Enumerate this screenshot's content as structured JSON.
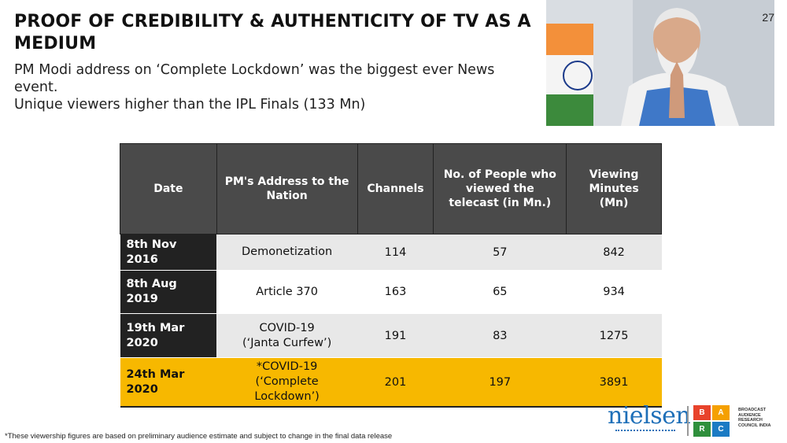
{
  "header": {
    "title": "PROOF OF CREDIBILITY & AUTHENTICITY OF TV AS A MEDIUM",
    "subtitle_line1": "PM Modi address on ‘Complete Lockdown’ was the biggest ever News event.",
    "subtitle_line2": "Unique viewers higher than the IPL Finals (133 Mn)"
  },
  "page_number": "27",
  "table": {
    "columns": [
      "Date",
      "PM's Address to the Nation",
      "Channels",
      "No. of People who viewed the telecast (in Mn.)",
      "Viewing Minutes (Mn)"
    ],
    "rows": [
      {
        "date": "8th Nov 2016",
        "address": "Demonetization",
        "address2": "",
        "channels": "114",
        "viewers": "57",
        "minutes": "842"
      },
      {
        "date": "8th Aug 2019",
        "address": "Article 370",
        "address2": "",
        "channels": "163",
        "viewers": "65",
        "minutes": "934"
      },
      {
        "date": "19th Mar 2020",
        "address": "COVID-19",
        "address2": "(‘Janta Curfew’)",
        "channels": "191",
        "viewers": "83",
        "minutes": "1275"
      },
      {
        "date": "24th Mar 2020",
        "address": "*COVID-19",
        "address2": "(‘Complete Lockdown’)",
        "channels": "201",
        "viewers": "197",
        "minutes": "3891"
      }
    ]
  },
  "footnote": "*These viewership figures are based on preliminary audience estimate and subject to change in the final data release",
  "logos": {
    "nielsen": "nielsen",
    "barc_letters": [
      "B",
      "A",
      "R",
      "C"
    ],
    "barc_colors": [
      "#e8432b",
      "#f5a000",
      "#2f8f3c",
      "#1b7bc4"
    ],
    "barc_text": "BROADCAST AUDIENCE RESEARCH COUNCIL INDIA"
  },
  "colors": {
    "header_bg": "#4a4a4a",
    "date_bg": "#222222",
    "highlight": "#f7b800",
    "nielsen_blue": "#1e6fb8"
  }
}
